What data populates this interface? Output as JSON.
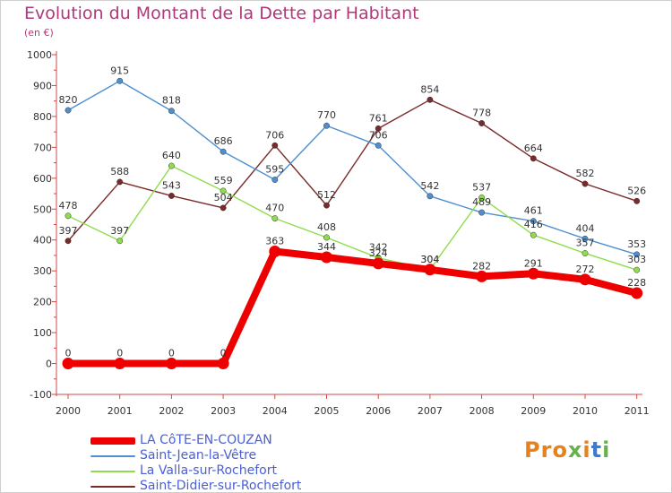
{
  "header": {
    "title": "Evolution du Montant de la Dette par Habitant",
    "subtitle": "(en €)"
  },
  "logo": {
    "text": "Proxiti",
    "colors": [
      "#e6821e",
      "#e6821e",
      "#e6821e",
      "#6ab04c",
      "#e6821e",
      "#3a7bd5",
      "#6ab04c"
    ]
  },
  "chart_data": {
    "type": "line",
    "title": "Evolution du Montant de la Dette par Habitant",
    "subtitle": "(en €)",
    "xlabel": "",
    "ylabel": "",
    "x": [
      "2000",
      "2001",
      "2002",
      "2003",
      "2004",
      "2005",
      "2006",
      "2007",
      "2008",
      "2009",
      "2010",
      "2011"
    ],
    "yticks": [
      "-100",
      "0",
      "100",
      "200",
      "300",
      "400",
      "500",
      "600",
      "700",
      "800",
      "900",
      "1000"
    ],
    "ylim": [
      -100,
      1000
    ],
    "grid": false,
    "legend_position": "bottom-left",
    "series": [
      {
        "name": "Saint-Didier-sur-Rochefort",
        "color": "#7a2a2a",
        "highlight": false,
        "values": [
          397,
          588,
          543,
          504,
          706,
          512,
          761,
          854,
          778,
          664,
          582,
          526
        ],
        "labels": [
          "397",
          "588",
          "543",
          "504",
          "706",
          "512",
          "761",
          "854",
          "778",
          "664",
          "582",
          "526"
        ]
      },
      {
        "name": "Saint-Jean-la-Vêtre",
        "color": "#4f8fd0",
        "highlight": false,
        "values": [
          820,
          915,
          818,
          686,
          595,
          770,
          706,
          542,
          489,
          461,
          404,
          353
        ],
        "labels": [
          "820",
          "915",
          "818",
          "686",
          "595",
          "770",
          "706",
          "542",
          "489",
          "461",
          "404",
          "353"
        ]
      },
      {
        "name": "La Valla-sur-Rochefort",
        "color": "#8fdc4e",
        "highlight": false,
        "values": [
          478,
          397,
          640,
          559,
          470,
          408,
          342,
          304,
          537,
          416,
          357,
          303
        ],
        "labels": [
          "478",
          "397",
          "640",
          "559",
          "470",
          "408",
          "342",
          "304",
          "537",
          "416",
          "357",
          "303"
        ]
      },
      {
        "name": "LA CôTE-EN-COUZAN",
        "color": "#ee0000",
        "highlight": true,
        "values": [
          0,
          0,
          0,
          0,
          363,
          344,
          324,
          304,
          282,
          291,
          272,
          228
        ],
        "labels": [
          "0",
          "0",
          "0",
          "0",
          "363",
          "344",
          "324",
          "304",
          "282",
          "291",
          "272",
          "228"
        ]
      }
    ]
  },
  "legend_items": [
    {
      "label": "LA CôTE-EN-COUZAN",
      "color": "#ee0000",
      "thick": true
    },
    {
      "label": "Saint-Jean-la-Vêtre",
      "color": "#4f8fd0",
      "thick": false
    },
    {
      "label": "La Valla-sur-Rochefort",
      "color": "#8fdc4e",
      "thick": false
    },
    {
      "label": "Saint-Didier-sur-Rochefort",
      "color": "#7a2a2a",
      "thick": false
    }
  ]
}
